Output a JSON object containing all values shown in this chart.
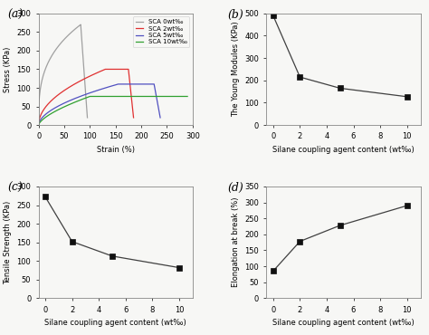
{
  "panel_a": {
    "title": "(a)",
    "xlabel": "Strain (%)",
    "ylabel": "Stress (KPa)",
    "xlim": [
      0,
      300
    ],
    "ylim": [
      0,
      300
    ],
    "xticks": [
      0,
      50,
      100,
      150,
      200,
      250,
      300
    ],
    "yticks": [
      0,
      50,
      100,
      150,
      200,
      250,
      300
    ],
    "curves": [
      {
        "label": "SCA 0wt‰",
        "color": "#a0a0a0"
      },
      {
        "label": "SCA 2wt‰",
        "color": "#e03030"
      },
      {
        "label": "SCA 5wt‰",
        "color": "#5050c0"
      },
      {
        "label": "SCA 10wt‰",
        "color": "#30a030"
      }
    ]
  },
  "panel_b": {
    "title": "(b)",
    "xlabel": "Silane coupling agent content (wt‰)",
    "ylabel": "The Young Modules (KPa)",
    "x": [
      0,
      2,
      5,
      10
    ],
    "y": [
      490,
      215,
      165,
      127
    ],
    "xlim": [
      -0.5,
      11
    ],
    "ylim": [
      0,
      500
    ],
    "xticks": [
      0,
      2,
      4,
      6,
      8,
      10
    ],
    "yticks": [
      0,
      100,
      200,
      300,
      400,
      500
    ]
  },
  "panel_c": {
    "title": "(c)",
    "xlabel": "Silane coupling agent content (wt‰)",
    "ylabel": "Tensile Strength (KPa)",
    "x": [
      0,
      2,
      5,
      10
    ],
    "y": [
      272,
      152,
      113,
      82
    ],
    "xlim": [
      -0.5,
      11
    ],
    "ylim": [
      0,
      300
    ],
    "xticks": [
      0,
      2,
      4,
      6,
      8,
      10
    ],
    "yticks": [
      0,
      50,
      100,
      150,
      200,
      250,
      300
    ]
  },
  "panel_d": {
    "title": "(d)",
    "xlabel": "Silane coupling agent content (wt‰)",
    "ylabel": "Elongation at break (%)",
    "x": [
      0,
      2,
      5,
      10
    ],
    "y": [
      85,
      178,
      228,
      290
    ],
    "xlim": [
      -0.5,
      11
    ],
    "ylim": [
      0,
      350
    ],
    "xticks": [
      0,
      2,
      4,
      6,
      8,
      10
    ],
    "yticks": [
      0,
      50,
      100,
      150,
      200,
      250,
      300,
      350
    ]
  },
  "line_color": "#404040",
  "marker": "s",
  "markersize": 4,
  "marker_color": "#101010",
  "tick_fontsize": 6,
  "label_fontsize": 6,
  "title_fontsize": 9,
  "bg_color": "#f7f7f5",
  "axes_bg": "#f7f7f5"
}
